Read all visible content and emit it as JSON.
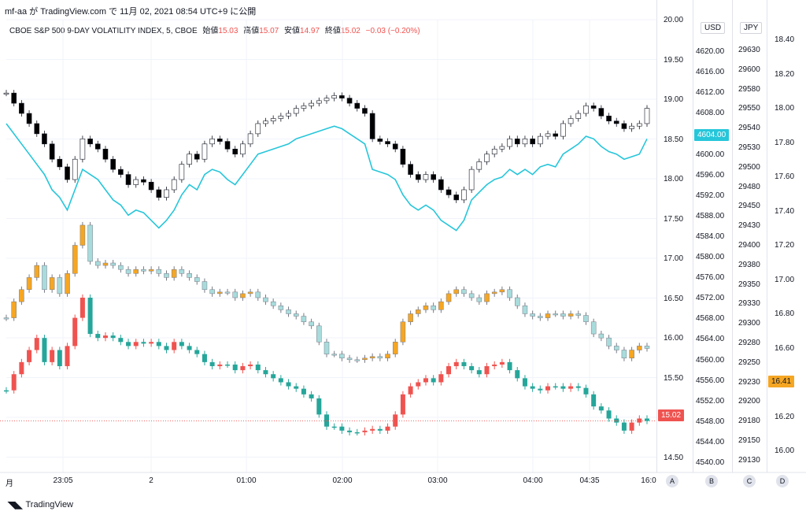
{
  "header": {
    "publisher_line": "mf-aa が TradingView.com で 11月 02, 2021 08:54 UTC+9 に公開"
  },
  "legend": {
    "symbol": "CBOE S&P 500 9-DAY VOLATILITY INDEX, 5, CBOE",
    "open_label": "始値",
    "open": "15.03",
    "high_label": "高値",
    "high": "15.07",
    "low_label": "安値",
    "low": "14.97",
    "close_label": "終値",
    "close": "15.02",
    "change": "−0.03 (−0.20%)"
  },
  "axes": {
    "vix_ticks": [
      "20.00",
      "19.50",
      "19.00",
      "18.50",
      "18.00",
      "17.50",
      "17.00",
      "16.50",
      "16.00",
      "15.50",
      "15.00",
      "14.50"
    ],
    "usd_unit": "USD",
    "usd_ticks": [
      "4620.00",
      "4616.00",
      "4612.00",
      "4608.00",
      "4604.00",
      "4600.00",
      "4596.00",
      "4592.00",
      "4588.00",
      "4584.00",
      "4580.00",
      "4576.00",
      "4572.00",
      "4568.00",
      "4564.00",
      "4560.00",
      "4556.00",
      "4552.00",
      "4548.00",
      "4544.00",
      "4540.00"
    ],
    "jpy_unit": "JPY",
    "jpy_ticks": [
      "29630",
      "29600",
      "29580",
      "29550",
      "29540",
      "29530",
      "29500",
      "29480",
      "29450",
      "29430",
      "29400",
      "29380",
      "29350",
      "29330",
      "29300",
      "29280",
      "29250",
      "29230",
      "29200",
      "29180",
      "29150",
      "29130"
    ],
    "d_ticks": [
      "18.40",
      "18.20",
      "18.00",
      "17.80",
      "17.60",
      "17.40",
      "17.20",
      "17.00",
      "16.80",
      "16.60",
      "16.41",
      "16.20",
      "16.00"
    ],
    "time_labels": [
      "月",
      "23:05",
      "2",
      "01:00",
      "02:00",
      "03:00",
      "04:00",
      "04:35",
      "16:0"
    ],
    "scale_buttons": [
      "A",
      "B",
      "C",
      "D"
    ]
  },
  "tags": {
    "usd_last": "4604.00",
    "vix_last": "15.02",
    "d_last": "16.41"
  },
  "colors": {
    "up_red": "#ef5350",
    "down_teal": "#26a69a",
    "orange": "#f5a623",
    "light_cyan": "#a8dcdc",
    "line_cyan": "#26c6da",
    "black": "#000000"
  },
  "brand": {
    "name": "TradingView"
  },
  "chart_data": {
    "type": "line",
    "series": [
      {
        "name": "CBOE S&P 500 9-DAY VOLATILITY INDEX",
        "values": [
          15.4,
          15.6,
          15.75,
          15.9,
          16.05,
          15.75,
          15.9,
          15.7,
          15.95,
          16.3,
          16.55,
          16.1,
          16.05,
          16.08,
          16.05,
          16.0,
          15.95,
          16.0,
          15.98,
          16.0,
          15.95,
          15.9,
          16.0,
          15.95,
          15.9,
          15.85,
          15.75,
          15.7,
          15.72,
          15.72,
          15.65,
          15.7,
          15.72,
          15.65,
          15.6,
          15.55,
          15.5,
          15.45,
          15.42,
          15.35,
          15.3,
          15.1,
          14.95,
          14.95,
          14.9,
          14.88,
          14.88,
          14.9,
          14.92,
          14.9,
          14.95,
          15.1,
          15.35,
          15.45,
          15.5,
          15.55,
          15.5,
          15.6,
          15.7,
          15.75,
          15.7,
          15.65,
          15.6,
          15.7,
          15.72,
          15.75,
          15.65,
          15.55,
          15.45,
          15.42,
          15.4,
          15.45,
          15.45,
          15.42,
          15.45,
          15.43,
          15.35,
          15.2,
          15.15,
          15.05,
          15.0,
          14.9,
          15.0,
          15.05,
          15.02
        ]
      },
      {
        "name": "USD",
        "values": [
          4607.0,
          4605.0,
          4603.0,
          4601.0,
          4599.0,
          4597.0,
          4594.0,
          4592.5,
          4590.0,
          4594.0,
          4598.0,
          4597.0,
          4596.0,
          4594.0,
          4592.0,
          4591.0,
          4589.0,
          4590.0,
          4589.5,
          4588.0,
          4586.5,
          4588.0,
          4590.0,
          4593.0,
          4595.0,
          4594.0,
          4597.0,
          4598.0,
          4597.5,
          4596.0,
          4595.0,
          4597.0,
          4599.0,
          4601.0,
          4601.5,
          4602.0,
          4602.5,
          4603.0,
          4604.0,
          4604.5,
          4605.0,
          4605.5,
          4606.0,
          4606.5,
          4606.0,
          4605.0,
          4604.0,
          4603.0,
          4598.0,
          4597.5,
          4597.0,
          4596.0,
          4593.0,
          4591.0,
          4590.0,
          4591.0,
          4590.0,
          4588.0,
          4587.0,
          4586.0,
          4588.0,
          4592.0,
          4593.5,
          4595.0,
          4596.0,
          4596.5,
          4598.0,
          4597.0,
          4598.0,
          4597.0,
          4598.5,
          4599.0,
          4598.5,
          4601.0,
          4602.0,
          4603.0,
          4604.5,
          4604.0,
          4602.5,
          4601.5,
          4601.0,
          4600.0,
          4600.5,
          4601.0,
          4604.0
        ]
      }
    ],
    "xlabel": "",
    "ylabel": "",
    "ylim": [
      14.4,
      20.0
    ]
  }
}
